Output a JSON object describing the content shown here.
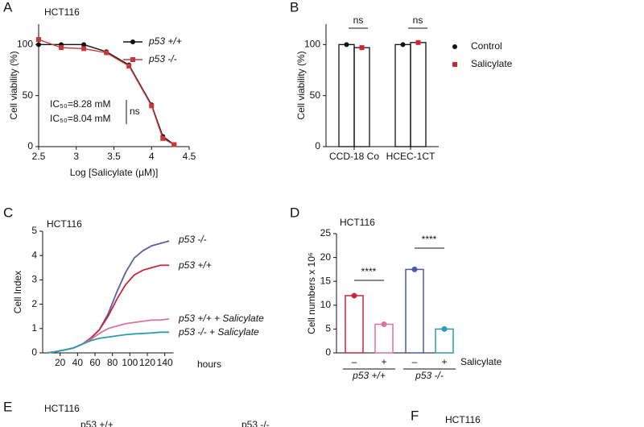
{
  "chart_data": [
    {
      "type": "line",
      "panel_label": "A",
      "subtitle": "HCT116",
      "x_label": "Log [Salicylate (µM)]",
      "y_label": "Cell viability (%)",
      "x": [
        2.5,
        2.8,
        3.1,
        3.4,
        3.7,
        4.0,
        4.15,
        4.3
      ],
      "series": [
        {
          "name": "p53 +/+",
          "color": "#111111",
          "marker": "circle",
          "values": [
            100,
            100,
            100,
            93,
            80,
            41,
            10,
            2
          ]
        },
        {
          "name": "p53 -/-",
          "color": "#c8383a",
          "marker": "square",
          "values": [
            105,
            97,
            96,
            92,
            79,
            40,
            8,
            2
          ]
        }
      ],
      "xlim": [
        2.5,
        4.5
      ],
      "xticks": [
        2.5,
        3.0,
        3.5,
        4.0,
        4.5
      ],
      "ylim": [
        0,
        120
      ],
      "yticks": [
        0,
        50,
        100
      ],
      "legend": "upper right",
      "annotations": [
        {
          "text": "IC₅₀=8.28 mM",
          "color": "#111111"
        },
        {
          "text": "IC₅₀=8.04 mM",
          "color": "#c8383a"
        },
        {
          "text": "ns",
          "color": "#111111"
        }
      ]
    },
    {
      "type": "bar",
      "panel_label": "B",
      "y_label": "Cell viability (%)",
      "categories": [
        "CCD-18 Co",
        "HCEC-1CT"
      ],
      "series": [
        {
          "name": "Control",
          "color": "#111111",
          "marker": "circle",
          "values": [
            100,
            100
          ]
        },
        {
          "name": "Salicylate",
          "color": "#d0262e",
          "marker": "square",
          "values": [
            97,
            102
          ]
        }
      ],
      "ylim": [
        0,
        120
      ],
      "yticks": [
        0,
        50,
        100
      ],
      "legend": "right",
      "annotations": [
        {
          "text": "ns",
          "color": "#111111"
        },
        {
          "text": "ns",
          "color": "#111111"
        }
      ]
    },
    {
      "type": "line",
      "panel_label": "C",
      "subtitle": "HCT116",
      "y_label": "Cell Index",
      "x_label": "hours",
      "x": [
        5,
        15,
        25,
        35,
        45,
        55,
        65,
        75,
        85,
        95,
        105,
        115,
        125,
        135,
        145
      ],
      "series": [
        {
          "name": "p53 -/-",
          "color": "#5a5fa8",
          "values": [
            0,
            0.05,
            0.12,
            0.2,
            0.35,
            0.6,
            0.95,
            1.6,
            2.5,
            3.3,
            3.9,
            4.2,
            4.4,
            4.5,
            4.6
          ]
        },
        {
          "name": "p53 +/+",
          "color": "#c8283e",
          "values": [
            0,
            0.05,
            0.12,
            0.2,
            0.35,
            0.6,
            0.95,
            1.5,
            2.2,
            2.8,
            3.2,
            3.4,
            3.5,
            3.6,
            3.6
          ]
        },
        {
          "name": "p53 +/+ + Salicylate",
          "color": "#d9739f",
          "values": [
            0,
            0.05,
            0.12,
            0.2,
            0.35,
            0.55,
            0.8,
            1.0,
            1.1,
            1.2,
            1.25,
            1.3,
            1.35,
            1.35,
            1.4
          ]
        },
        {
          "name": "p53 -/- + Salicylate",
          "color": "#2a9bb0",
          "values": [
            0,
            0.05,
            0.12,
            0.2,
            0.35,
            0.5,
            0.6,
            0.65,
            0.7,
            0.75,
            0.78,
            0.8,
            0.82,
            0.85,
            0.85
          ]
        }
      ],
      "xlim": [
        0,
        150
      ],
      "xticks": [
        20,
        40,
        60,
        80,
        100,
        120,
        140
      ],
      "ylim": [
        0,
        5
      ],
      "yticks": [
        0,
        1,
        2,
        3,
        4,
        5
      ]
    },
    {
      "type": "bar",
      "panel_label": "D",
      "subtitle": "HCT116",
      "y_label": "Cell numbers x 10⁶",
      "categories": [
        "–",
        "+",
        "–",
        "+"
      ],
      "values": [
        12,
        6,
        17.5,
        5
      ],
      "colors": [
        "#c8283e",
        "#d9739f",
        "#4a5aa8",
        "#2a9bb0"
      ],
      "ylim": [
        0,
        25
      ],
      "yticks": [
        0,
        5,
        10,
        15,
        20,
        25
      ],
      "groups": [
        "p53 +/+",
        "p53 -/-"
      ],
      "annotations": [
        {
          "text": "****",
          "color": "#111111"
        },
        {
          "text": "****",
          "color": "#111111"
        },
        {
          "text": "Salicylate",
          "color": "#111111"
        }
      ]
    }
  ],
  "partial_panels": [
    {
      "panel_label": "E",
      "subtitle": "HCT116",
      "texts": [
        "p53 +/+",
        "p53 -/-"
      ]
    },
    {
      "panel_label": "F",
      "subtitle": "HCT116"
    }
  ]
}
